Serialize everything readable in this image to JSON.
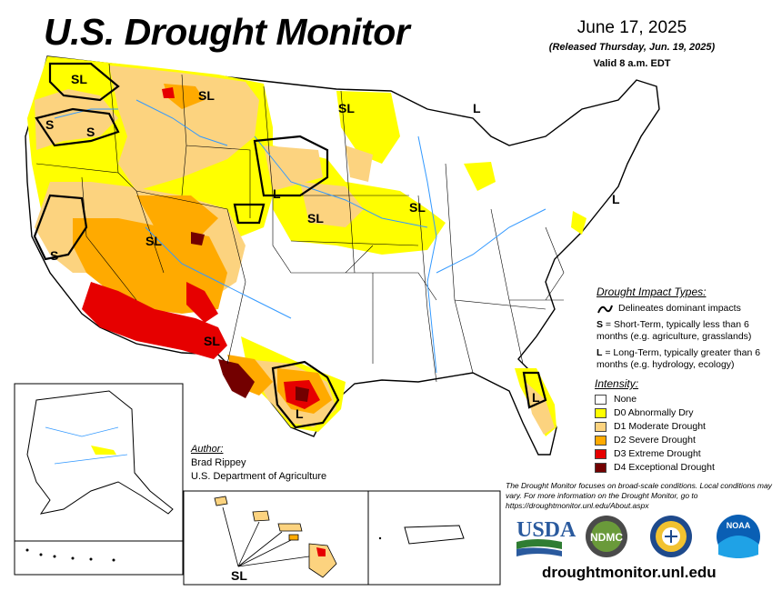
{
  "title": "U.S. Drought Monitor",
  "date": "June 17, 2025",
  "released": "(Released Thursday, Jun. 19, 2025)",
  "valid": "Valid 8 a.m. EDT",
  "impact": {
    "title": "Drought Impact Types:",
    "delineates": "Delineates dominant impacts",
    "short_term_key": "S",
    "short_term_text": " = Short-Term, typically less than 6 months (e.g. agriculture, grasslands)",
    "long_term_key": "L",
    "long_term_text": " = Long-Term, typically greater than 6 months (e.g. hydrology, ecology)"
  },
  "intensity": {
    "title": "Intensity:",
    "items": [
      {
        "label": "None",
        "color": "#ffffff"
      },
      {
        "label": "D0 Abnormally Dry",
        "color": "#ffff00"
      },
      {
        "label": "D1 Moderate Drought",
        "color": "#fcd37f"
      },
      {
        "label": "D2 Severe Drought",
        "color": "#ffaa00"
      },
      {
        "label": "D3 Extreme Drought",
        "color": "#e60000"
      },
      {
        "label": "D4 Exceptional Drought",
        "color": "#730000"
      }
    ]
  },
  "author": {
    "title": "Author:",
    "name": "Brad Rippey",
    "org": "U.S. Department of Agriculture"
  },
  "disclaimer": "The Drought Monitor focuses on broad-scale conditions. Local conditions may vary. For more information on the Drought Monitor, go to https://droughtmonitor.unl.edu/About.aspx",
  "website": "droughtmonitor.unl.edu",
  "map_labels": {
    "sl_nw": "SL",
    "s_or1": "S",
    "s_or2": "S",
    "sl_mt": "SL",
    "sl_mn": "SL",
    "l_mi": "L",
    "l_sd": "L",
    "sl_ne": "SL",
    "sl_ia": "SL",
    "l_east": "L",
    "s_ca": "S",
    "sl_sw": "SL",
    "sl_nm": "SL",
    "l_tx": "L",
    "l_fl": "L",
    "sl_hi": "SL"
  },
  "logos": {
    "usda": "USDA",
    "ndmc": "NDMC",
    "noaa": "NOAA"
  },
  "colors": {
    "none": "#ffffff",
    "d0": "#ffff00",
    "d1": "#fcd37f",
    "d2": "#ffaa00",
    "d3": "#e60000",
    "d4": "#730000",
    "water": "#3399ff",
    "border": "#000000"
  }
}
